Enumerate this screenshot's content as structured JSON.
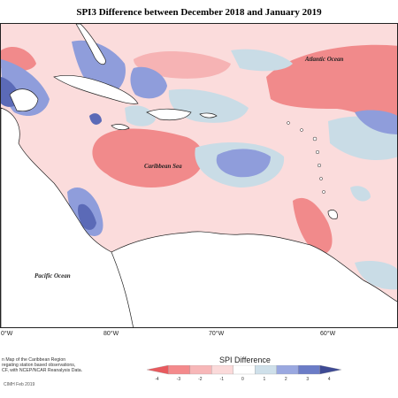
{
  "title": "SPI3 Difference between December 2018 and January 2019",
  "labels": {
    "atlantic": "Atlantic Ocean",
    "caribbean": "Caribbean Sea",
    "pacific": "Pacific Ocean"
  },
  "longitude_ticks": [
    "0°W",
    "80°W",
    "70°W",
    "60°W"
  ],
  "credit_lines": [
    "n Map of the Caribbean Region",
    "regating station based observations,",
    "CF, with NCEP/NCAR Reanalysis Data."
  ],
  "footer": "CIMH Feb 2019",
  "legend": {
    "title": "SPI Difference",
    "ticks": [
      "-4",
      "-3",
      "-2",
      "-1",
      "0",
      "1",
      "2",
      "3",
      "4"
    ],
    "colors": [
      "#e85a5e",
      "#f48a8c",
      "#f7b7b8",
      "#fbdada",
      "#ffffff",
      "#cfe0ea",
      "#9aa8e0",
      "#6b7cc7",
      "#3e4a94"
    ]
  },
  "palette": {
    "ocean_base": "#fbdcdc",
    "neg_strong": "#f18a8b",
    "neg_med": "#f6b3b4",
    "pos_light": "#c9dce6",
    "pos_med": "#8f9ddb",
    "pos_strong": "#5b6ab7",
    "land": "#ffffff",
    "coast": "#222222"
  }
}
